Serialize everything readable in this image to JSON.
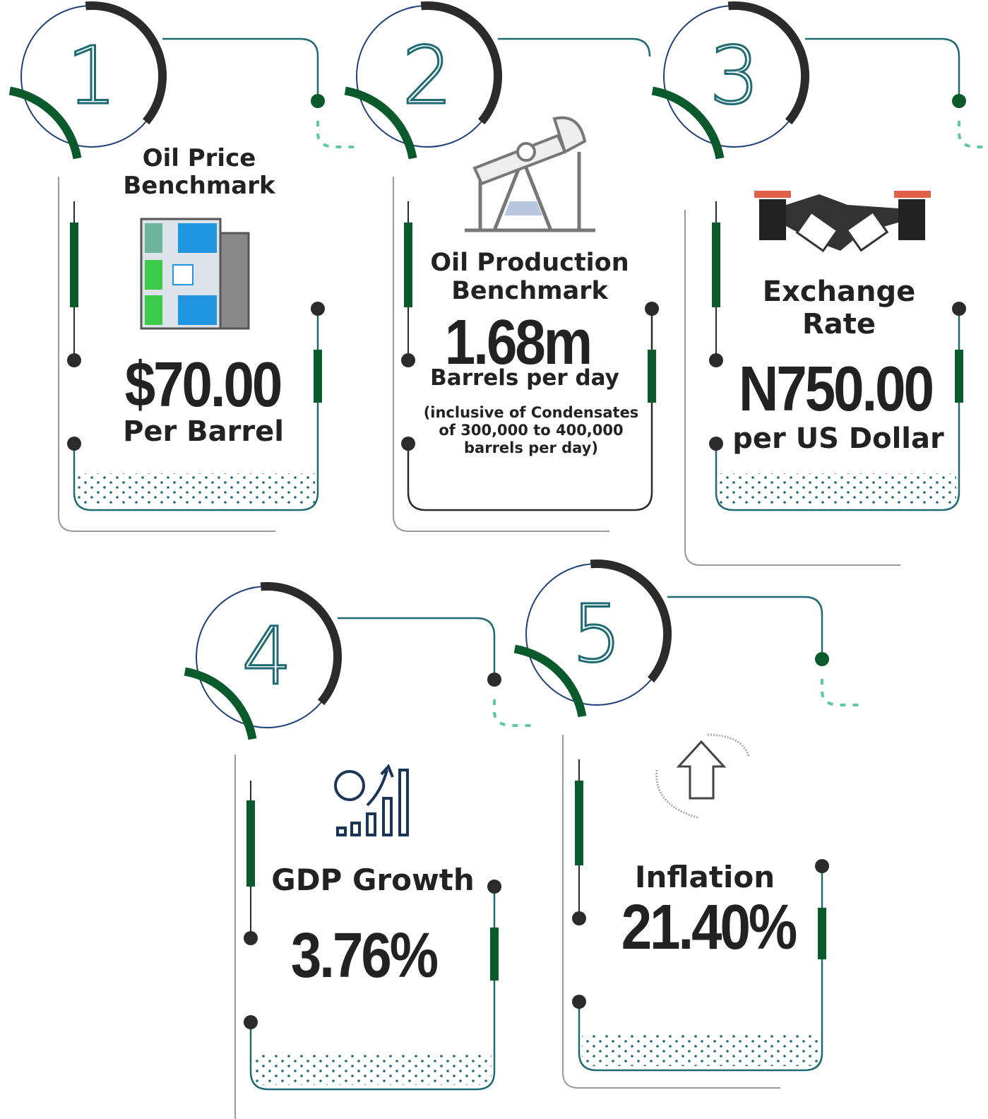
{
  "cards": [
    {
      "number": "1",
      "title": "Oil Price Benchmark",
      "value": "$70.00",
      "unit": "Per Barrel"
    },
    {
      "number": "2",
      "title": "Oil Production Benchmark",
      "value": "1.68m",
      "unit": "Barrels per day",
      "note": "(inclusive of Condensates of 300,000 to 400,000 barrels per day)"
    },
    {
      "number": "3",
      "title": "Exchange Rate",
      "value": "N750.00",
      "unit": "per US Dollar"
    },
    {
      "number": "4",
      "title": "GDP Growth",
      "value": "3.76%"
    },
    {
      "number": "5",
      "title": "Inflation",
      "value": "21.40%"
    }
  ]
}
